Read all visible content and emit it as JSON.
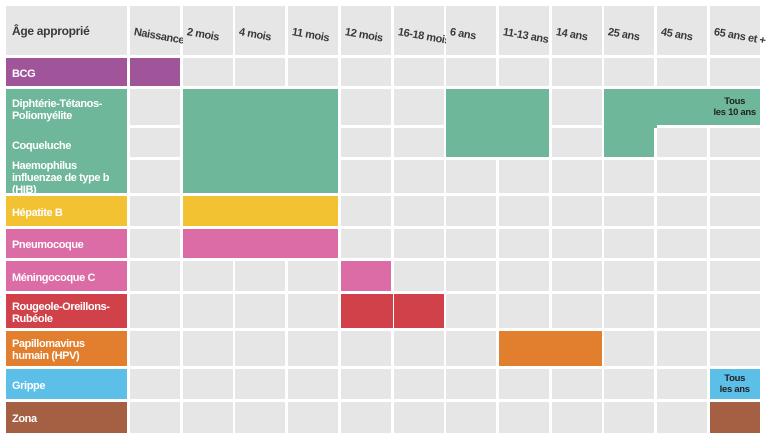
{
  "table": {
    "corner": "Âge approprié",
    "columns": [
      "Naissance",
      "2 mois",
      "4 mois",
      "11 mois",
      "12 mois",
      "16-18 mois",
      "6 ans",
      "11-13 ans",
      "14 ans",
      "25 ans",
      "45 ans",
      "65 ans et +"
    ],
    "rows": [
      {
        "label": "BCG",
        "color": "#a0559b",
        "cells": [
          true,
          null,
          null,
          null,
          null,
          null,
          null,
          null,
          null,
          null,
          null,
          null
        ]
      },
      {
        "label": "Diphtérie-Tétanos-Poliomyélite",
        "color": "#6fb79a",
        "cells": [
          null,
          true,
          true,
          true,
          null,
          null,
          true,
          true,
          null,
          true,
          true,
          {
            "lines": [
              "Tous",
              "les 10 ans"
            ]
          }
        ]
      },
      {
        "label": "Coqueluche",
        "color": "#6fb79a",
        "cells": [
          null,
          true,
          true,
          true,
          null,
          null,
          true,
          true,
          null,
          true,
          null,
          null
        ]
      },
      {
        "label": "Haemophilus influenzae de type b (HIB)",
        "color": "#6fb79a",
        "cells": [
          null,
          true,
          true,
          true,
          null,
          null,
          null,
          null,
          null,
          null,
          null,
          null
        ]
      },
      {
        "label": "Hépatite B",
        "color": "#f2c232",
        "cells": [
          null,
          true,
          true,
          true,
          null,
          null,
          null,
          null,
          null,
          null,
          null,
          null
        ]
      },
      {
        "label": "Pneumocoque",
        "color": "#dc6ca6",
        "cells": [
          null,
          true,
          true,
          true,
          null,
          null,
          null,
          null,
          null,
          null,
          null,
          null
        ]
      },
      {
        "label": "Méningocoque C",
        "color": "#dc6ca6",
        "cells": [
          null,
          null,
          null,
          null,
          true,
          null,
          null,
          null,
          null,
          null,
          null,
          null
        ]
      },
      {
        "label": "Rougeole-Oreillons-Rubéole",
        "color": "#d0414a",
        "cells": [
          null,
          null,
          null,
          null,
          true,
          true,
          null,
          null,
          null,
          null,
          null,
          null
        ]
      },
      {
        "label": "Papillomavirus humain (HPV)",
        "color": "#e27f2e",
        "cells": [
          null,
          null,
          null,
          null,
          null,
          null,
          null,
          true,
          true,
          null,
          null,
          null
        ]
      },
      {
        "label": "Grippe",
        "color": "#5bbfe8",
        "cells": [
          null,
          null,
          null,
          null,
          null,
          null,
          null,
          null,
          null,
          null,
          null,
          {
            "lines": [
              "Tous",
              "les ans"
            ]
          }
        ]
      },
      {
        "label": "Zona",
        "color": "#a55f43",
        "cells": [
          null,
          null,
          null,
          null,
          null,
          null,
          null,
          null,
          null,
          null,
          null,
          true
        ]
      }
    ]
  }
}
